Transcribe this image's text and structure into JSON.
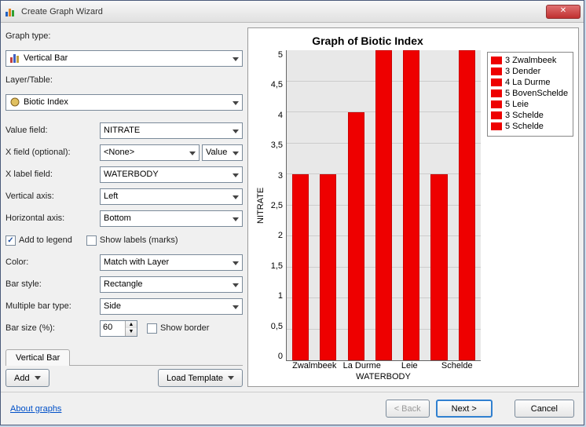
{
  "window": {
    "title": "Create Graph Wizard"
  },
  "form": {
    "graph_type_label": "Graph type:",
    "graph_type_value": "Vertical Bar",
    "layer_label": "Layer/Table:",
    "layer_value": "Biotic Index",
    "value_field_label": "Value field:",
    "value_field_value": "NITRATE",
    "x_field_label": "X field (optional):",
    "x_field_value": "<None>",
    "x_field_btn": "Value",
    "x_label_field_label": "X label field:",
    "x_label_field_value": "WATERBODY",
    "vaxis_label": "Vertical axis:",
    "vaxis_value": "Left",
    "haxis_label": "Horizontal axis:",
    "haxis_value": "Bottom",
    "add_legend_label": "Add to legend",
    "show_labels_label": "Show labels (marks)",
    "color_label": "Color:",
    "color_value": "Match with Layer",
    "bar_style_label": "Bar style:",
    "bar_style_value": "Rectangle",
    "multi_bar_label": "Multiple bar type:",
    "multi_bar_value": "Side",
    "bar_size_label": "Bar size (%):",
    "bar_size_value": "60",
    "show_border_label": "Show border",
    "tab_label": "Vertical Bar",
    "add_btn": "Add",
    "load_tpl_btn": "Load Template"
  },
  "chart": {
    "type": "bar",
    "title": "Graph of Biotic Index",
    "ylabel": "NITRATE",
    "xlabel": "WATERBODY",
    "ylim": [
      0,
      5
    ],
    "ytick_step": 0.5,
    "yticks": [
      "5",
      "4,5",
      "4",
      "3,5",
      "3",
      "2,5",
      "2",
      "1,5",
      "1",
      "0,5",
      "0"
    ],
    "categories": [
      "Zwalmbeek",
      "Dender",
      "La Durme",
      "BovenSchelde",
      "Leie",
      "Schelde",
      "Schelde"
    ],
    "xlabels_shown": [
      "Zwalmbeek",
      "La Durme",
      "Leie",
      "Schelde"
    ],
    "values": [
      3,
      3,
      4,
      5,
      5,
      3,
      5
    ],
    "bar_color": "#ee0000",
    "bar_border": "#cc0000",
    "background": "#e8e8e8",
    "grid_color": "#cccccc",
    "bar_width_pct": 60,
    "legend": [
      "3 Zwalmbeek",
      "3 Dender",
      "4 La Durme",
      "5 BovenSchelde",
      "5 Leie",
      "3 Schelde",
      "5 Schelde"
    ]
  },
  "footer": {
    "link": "About graphs",
    "back": "< Back",
    "next": "Next >",
    "cancel": "Cancel"
  }
}
